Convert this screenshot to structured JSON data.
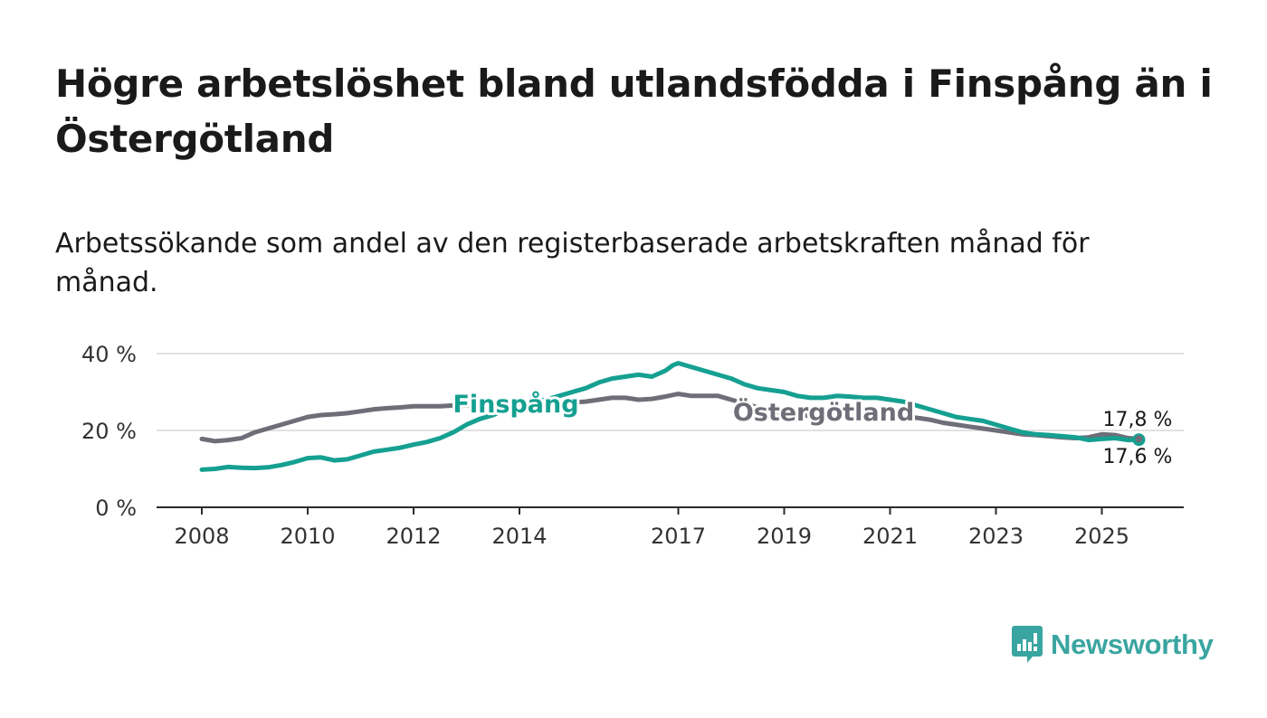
{
  "title": "Högre arbetslöshet bland utlandsfödda i Finspång än i Östergötland",
  "subtitle": "Arbetssökande som andel av den registerbaserade arbetskraften månad för månad.",
  "brand": {
    "name": "Newsworthy",
    "color": "#3aa5a0"
  },
  "chart_data": {
    "type": "line",
    "title": "Högre arbetslöshet bland utlandsfödda i Finspång än i Östergötland",
    "xlabel": "",
    "ylabel": "",
    "xlim": [
      2008,
      2026
    ],
    "ylim": [
      0,
      40
    ],
    "y_ticks": [
      0,
      20,
      40
    ],
    "y_tick_labels": [
      "0 %",
      "20 %",
      "40 %"
    ],
    "x_ticks": [
      2008,
      2010,
      2012,
      2014,
      2017,
      2019,
      2021,
      2023,
      2025
    ],
    "x_tick_labels": [
      "2008",
      "2010",
      "2012",
      "2014",
      "2017",
      "2019",
      "2021",
      "2023",
      "2025"
    ],
    "grid": true,
    "series": [
      {
        "name": "Finspång",
        "color": "#15a091",
        "end_label": "17,6 %",
        "x": [
          2008.0,
          2008.25,
          2008.5,
          2008.75,
          2009.0,
          2009.25,
          2009.5,
          2009.75,
          2010.0,
          2010.25,
          2010.5,
          2010.75,
          2011.0,
          2011.25,
          2011.5,
          2011.75,
          2012.0,
          2012.25,
          2012.5,
          2012.75,
          2013.0,
          2013.25,
          2013.5,
          2013.75,
          2014.0,
          2014.25,
          2014.5,
          2014.75,
          2015.0,
          2015.25,
          2015.5,
          2015.75,
          2016.0,
          2016.25,
          2016.5,
          2016.75,
          2016.9,
          2017.0,
          2017.25,
          2017.5,
          2017.75,
          2018.0,
          2018.25,
          2018.5,
          2018.75,
          2019.0,
          2019.25,
          2019.5,
          2019.75,
          2020.0,
          2020.25,
          2020.5,
          2020.75,
          2021.0,
          2021.25,
          2021.5,
          2021.75,
          2022.0,
          2022.25,
          2022.5,
          2022.75,
          2023.0,
          2023.25,
          2023.5,
          2023.75,
          2024.0,
          2024.25,
          2024.5,
          2024.75,
          2025.0,
          2025.25,
          2025.5,
          2025.7
        ],
        "y": [
          9.8,
          10.0,
          10.5,
          10.3,
          10.2,
          10.4,
          11.0,
          11.8,
          12.8,
          13.0,
          12.2,
          12.5,
          13.5,
          14.5,
          15.0,
          15.5,
          16.3,
          17.0,
          18.0,
          19.5,
          21.5,
          23.0,
          24.0,
          25.5,
          26.5,
          27.5,
          28.0,
          29.0,
          30.0,
          31.0,
          32.5,
          33.5,
          34.0,
          34.5,
          34.0,
          35.5,
          37.0,
          37.5,
          36.5,
          35.5,
          34.5,
          33.5,
          32.0,
          31.0,
          30.5,
          30.0,
          29.0,
          28.5,
          28.5,
          29.0,
          28.8,
          28.5,
          28.5,
          28.0,
          27.5,
          26.5,
          25.5,
          24.5,
          23.5,
          23.0,
          22.5,
          21.5,
          20.5,
          19.5,
          19.0,
          18.8,
          18.5,
          18.2,
          17.5,
          17.8,
          18.0,
          17.5,
          17.6
        ]
      },
      {
        "name": "Östergötland",
        "color": "#6e6e78",
        "end_label": "17,8 %",
        "x": [
          2008.0,
          2008.25,
          2008.5,
          2008.75,
          2009.0,
          2009.25,
          2009.5,
          2009.75,
          2010.0,
          2010.25,
          2010.5,
          2010.75,
          2011.0,
          2011.25,
          2011.5,
          2011.75,
          2012.0,
          2012.25,
          2012.5,
          2012.75,
          2013.0,
          2013.25,
          2013.5,
          2013.75,
          2014.0,
          2014.25,
          2014.5,
          2014.75,
          2015.0,
          2015.25,
          2015.5,
          2015.75,
          2016.0,
          2016.25,
          2016.5,
          2016.75,
          2017.0,
          2017.25,
          2017.5,
          2017.75,
          2018.0,
          2018.25,
          2018.5,
          2018.75,
          2019.0,
          2019.25,
          2019.5,
          2019.75,
          2020.0,
          2020.25,
          2020.5,
          2020.75,
          2021.0,
          2021.25,
          2021.5,
          2021.75,
          2022.0,
          2022.25,
          2022.5,
          2022.75,
          2023.0,
          2023.25,
          2023.5,
          2023.75,
          2024.0,
          2024.25,
          2024.5,
          2024.75,
          2025.0,
          2025.25,
          2025.5,
          2025.7
        ],
        "y": [
          17.8,
          17.2,
          17.5,
          18.0,
          19.5,
          20.5,
          21.5,
          22.5,
          23.5,
          24.0,
          24.2,
          24.5,
          25.0,
          25.5,
          25.8,
          26.0,
          26.3,
          26.3,
          26.3,
          26.5,
          26.5,
          26.6,
          26.7,
          26.8,
          26.9,
          27.0,
          27.1,
          27.2,
          27.3,
          27.5,
          28.0,
          28.5,
          28.5,
          28.0,
          28.2,
          28.8,
          29.5,
          29.0,
          29.0,
          29.0,
          28.0,
          27.0,
          26.0,
          25.0,
          24.5,
          24.0,
          23.8,
          23.5,
          23.5,
          23.5,
          23.5,
          23.5,
          23.5,
          23.5,
          23.3,
          22.8,
          22.0,
          21.5,
          21.0,
          20.5,
          20.0,
          19.5,
          19.0,
          18.8,
          18.5,
          18.2,
          18.0,
          18.2,
          19.0,
          18.8,
          18.0,
          17.8
        ]
      }
    ]
  }
}
